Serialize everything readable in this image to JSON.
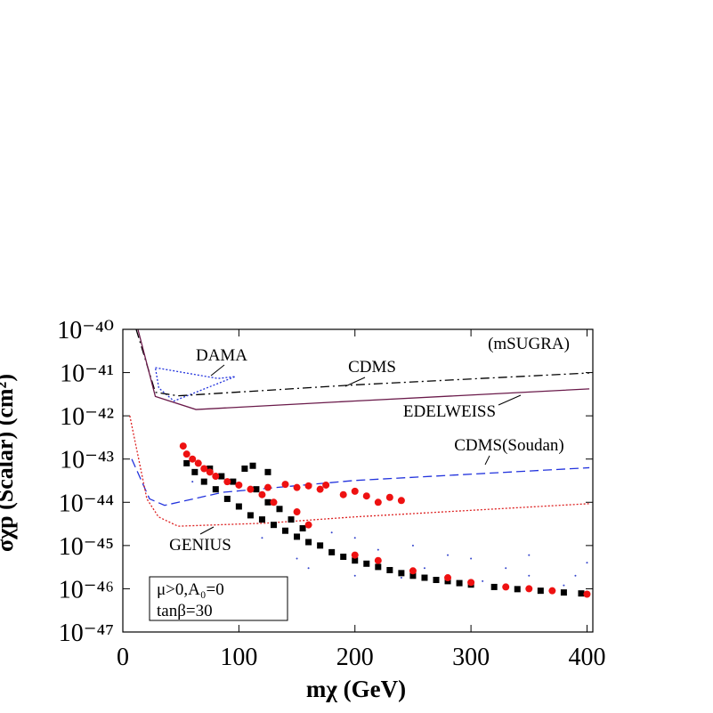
{
  "chart_data": {
    "type": "scatter",
    "x_label": "mχ (GeV)",
    "y_label": "σχp (Scalar) (cm²)",
    "xlim": [
      0,
      405
    ],
    "ylim": [
      1e-47,
      1e-40
    ],
    "log_y": true,
    "xticks": [
      0,
      100,
      200,
      300,
      400
    ],
    "yticks": [
      {
        "value": 1e-40,
        "label": "10⁻⁴⁰"
      },
      {
        "value": 1e-41,
        "label": "10⁻⁴¹"
      },
      {
        "value": 1e-42,
        "label": "10⁻⁴²"
      },
      {
        "value": 1e-43,
        "label": "10⁻⁴³"
      },
      {
        "value": 1e-44,
        "label": "10⁻⁴⁴"
      },
      {
        "value": 1e-45,
        "label": "10⁻⁴⁵"
      },
      {
        "value": 1e-46,
        "label": "10⁻⁴⁶"
      },
      {
        "value": 1e-47,
        "label": "10⁻⁴⁷"
      }
    ],
    "annotations": [
      "(mSUGRA)",
      "μ>0,A₀=0",
      "tanβ=30"
    ],
    "series": [
      {
        "name": "DAMA",
        "style": "dotted",
        "closed": true,
        "color": "#2233dd",
        "x": [
          28,
          82,
          97,
          44,
          31
        ],
        "values": [
          1.3e-41,
          7.3e-42,
          8.1e-42,
          2.2e-42,
          4.4e-42
        ]
      },
      {
        "name": "CDMS",
        "style": "dashdot",
        "color": "#000000",
        "x": [
          11.5,
          28,
          47.5,
          200,
          402
        ],
        "values": [
          1e-40,
          3.5e-42,
          2.9e-42,
          5.2e-42,
          9.8e-42
        ]
      },
      {
        "name": "EDELWEISS",
        "style": "solid",
        "color": "#6a1a4a",
        "x": [
          13,
          28,
          63,
          200,
          402
        ],
        "values": [
          1e-40,
          2.8e-42,
          1.4e-42,
          2.2e-42,
          4.2e-42
        ]
      },
      {
        "name": "CDMS(Soudan)",
        "style": "dashed",
        "color": "#2233dd",
        "x": [
          7.7,
          23,
          36,
          86,
          200,
          402
        ],
        "values": [
          1e-43,
          1.2e-44,
          8.5e-45,
          1.7e-44,
          3.2e-44,
          6.3e-44
        ]
      },
      {
        "name": "GENIUS",
        "style": "dotted",
        "color": "#dd2222",
        "x": [
          6,
          20.7,
          30.7,
          47.5,
          124,
          200,
          402
        ],
        "values": [
          1e-42,
          1.2e-44,
          4.6e-45,
          2.8e-45,
          3.3e-45,
          4.6e-45,
          9.3e-45
        ]
      },
      {
        "marker": "dot",
        "color": "#3344cc",
        "x": [
          60,
          150,
          200,
          250,
          300,
          350,
          400,
          380,
          260,
          220,
          180,
          330,
          280,
          240,
          200,
          160,
          120,
          350,
          390,
          310
        ],
        "values": [
          3e-44,
          5e-46,
          1.5e-45,
          1e-45,
          5e-46,
          2e-46,
          4e-46,
          1.2e-46,
          3e-46,
          8e-46,
          2e-45,
          3e-46,
          6e-46,
          1.8e-46,
          2e-46,
          3e-46,
          1.5e-45,
          6e-46,
          2e-46,
          1.5e-46
        ]
      },
      {
        "marker": "square",
        "color": "#000000",
        "x": [
          55,
          62,
          70,
          75,
          80,
          85,
          90,
          95,
          100,
          105,
          110,
          115,
          120,
          125,
          130,
          135,
          140,
          145,
          150,
          155,
          160,
          170,
          180,
          190,
          200,
          210,
          220,
          230,
          240,
          250,
          260,
          270,
          280,
          290,
          300,
          320,
          340,
          360,
          380,
          395,
          112,
          125
        ],
        "values": [
          8e-44,
          5e-44,
          3e-44,
          6e-44,
          2e-44,
          4e-44,
          1.2e-44,
          3e-44,
          8e-45,
          6e-44,
          5e-45,
          2e-44,
          4e-45,
          1e-44,
          3e-45,
          7e-45,
          2.2e-45,
          4e-45,
          1.6e-45,
          2.5e-45,
          1.2e-45,
          1e-45,
          7e-46,
          5.5e-46,
          4.5e-46,
          3.8e-46,
          3.2e-46,
          2.7e-46,
          2.3e-46,
          2e-46,
          1.8e-46,
          1.6e-46,
          1.5e-46,
          1.35e-46,
          1.25e-46,
          1.1e-46,
          9.8e-47,
          9e-47,
          8.2e-47,
          7.8e-47,
          7e-44,
          5e-44
        ]
      },
      {
        "marker": "circle",
        "color": "#ee1111",
        "x": [
          52,
          55,
          60,
          65,
          70,
          75,
          80,
          90,
          100,
          110,
          120,
          130,
          125,
          140,
          150,
          160,
          170,
          175,
          190,
          200,
          210,
          220,
          230,
          240,
          150,
          160,
          200,
          220,
          250,
          280,
          300,
          330,
          350,
          370,
          400
        ],
        "values": [
          2e-43,
          1.3e-43,
          1e-43,
          8e-44,
          6e-44,
          5e-44,
          4e-44,
          3e-44,
          2.5e-44,
          2e-44,
          1.5e-44,
          1e-44,
          2.2e-44,
          2.6e-44,
          2.2e-44,
          2.4e-44,
          2e-44,
          2.5e-44,
          1.5e-44,
          1.8e-44,
          1.4e-44,
          1e-44,
          1.3e-44,
          1.1e-44,
          6e-45,
          3e-45,
          6e-46,
          4.5e-46,
          2.6e-46,
          1.8e-46,
          1.4e-46,
          1.1e-46,
          1e-46,
          9e-47,
          7.5e-47
        ]
      }
    ]
  }
}
